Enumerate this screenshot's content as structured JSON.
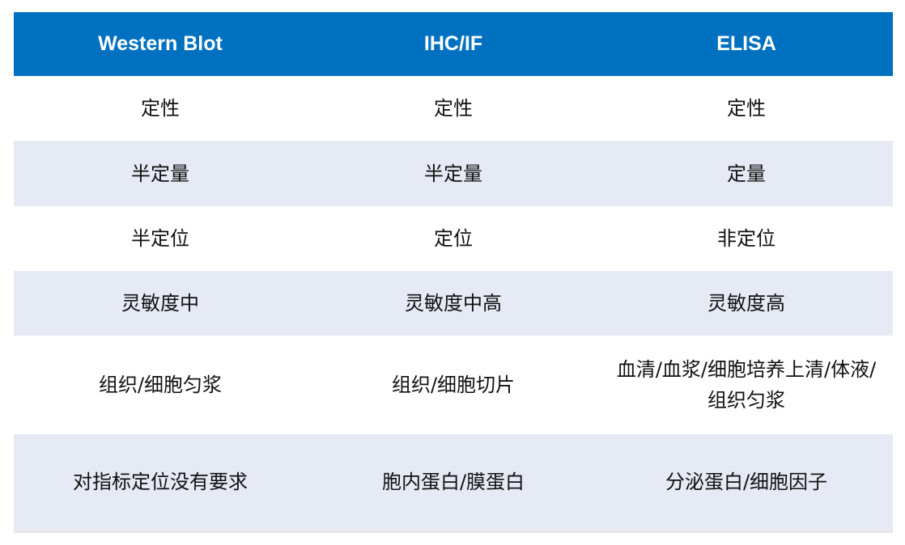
{
  "colors": {
    "header_bg": "#0071c1",
    "alt_row_bg": "#e6eaf5"
  },
  "headers": [
    "Western Blot",
    "IHC/IF",
    "ELISA"
  ],
  "rows": [
    [
      "定性",
      "定性",
      "定性"
    ],
    [
      "半定量",
      "半定量",
      "定量"
    ],
    [
      "半定位",
      "定位",
      "非定位"
    ],
    [
      "灵敏度中",
      "灵敏度中高",
      "灵敏度高"
    ],
    [
      "组织/细胞匀浆",
      "组织/细胞切片",
      "血清/血浆/细胞培养上清/体液/组织匀浆"
    ],
    [
      "对指标定位没有要求",
      "胞内蛋白/膜蛋白",
      "分泌蛋白/细胞因子"
    ]
  ]
}
